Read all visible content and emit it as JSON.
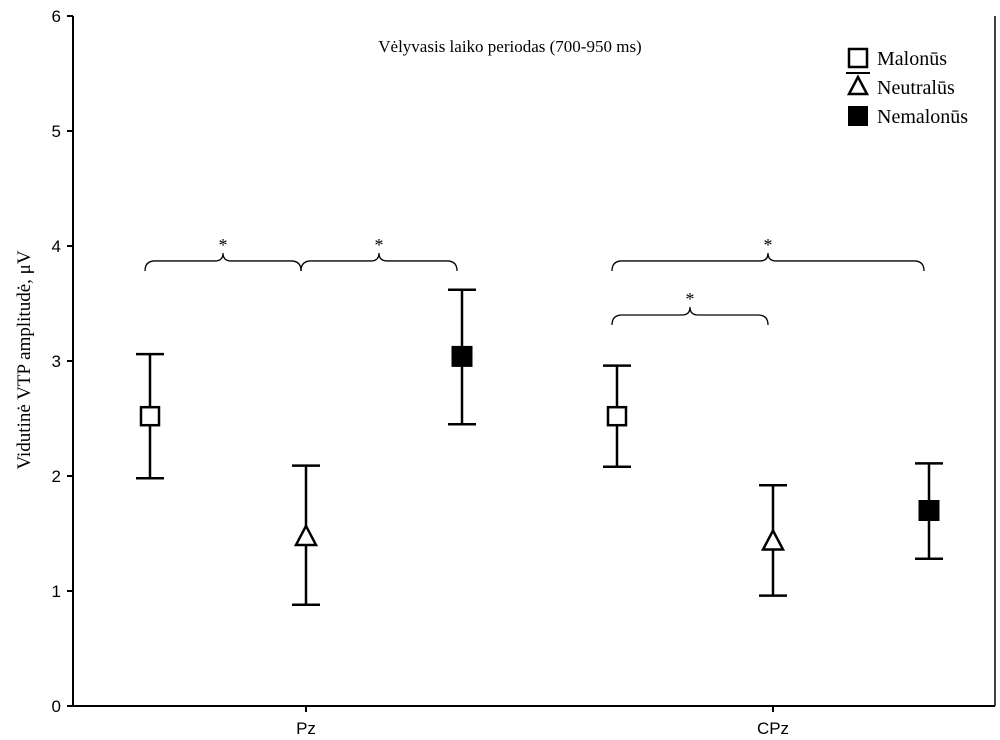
{
  "chart_data": {
    "type": "scatter",
    "title": "Vėlyvasis laiko periodas (700-950 ms)",
    "xlabel": "",
    "ylabel": "Vidutinė VTP amplitudė, μV",
    "categories": [
      "Pz",
      "CPz"
    ],
    "ylim": [
      0,
      6
    ],
    "yticks": [
      "0",
      "1",
      "2",
      "3",
      "4",
      "5",
      "6"
    ],
    "grid": false,
    "legend_position": "top-right",
    "series": [
      {
        "name": "Malonūs",
        "marker": "open-square",
        "values": [
          2.52,
          2.52
        ],
        "err_low": [
          1.98,
          2.08
        ],
        "err_high": [
          3.06,
          2.96
        ]
      },
      {
        "name": "Neutralūs",
        "marker": "open-triangle",
        "values": [
          1.47,
          1.43
        ],
        "err_low": [
          0.88,
          0.96
        ],
        "err_high": [
          2.09,
          1.92
        ]
      },
      {
        "name": "Nemalonūs",
        "marker": "filled-square",
        "values": [
          3.04,
          1.7
        ],
        "err_low": [
          2.45,
          1.28
        ],
        "err_high": [
          3.62,
          2.11
        ]
      }
    ],
    "significance": [
      {
        "category": "Pz",
        "from": "Malonūs",
        "to": "Neutralūs",
        "y": 3.87,
        "label": "*"
      },
      {
        "category": "Pz",
        "from": "Neutralūs",
        "to": "Nemalonūs",
        "y": 3.87,
        "label": "*"
      },
      {
        "category": "CPz",
        "from": "Malonūs",
        "to": "Nemalonūs",
        "y": 3.87,
        "label": "*"
      },
      {
        "category": "CPz",
        "from": "Malonūs",
        "to": "Neutralūs",
        "y": 3.4,
        "label": "*"
      }
    ],
    "colors": {
      "axis": "#000000",
      "marker_fill": "#000000",
      "marker_open": "#ffffff"
    }
  }
}
